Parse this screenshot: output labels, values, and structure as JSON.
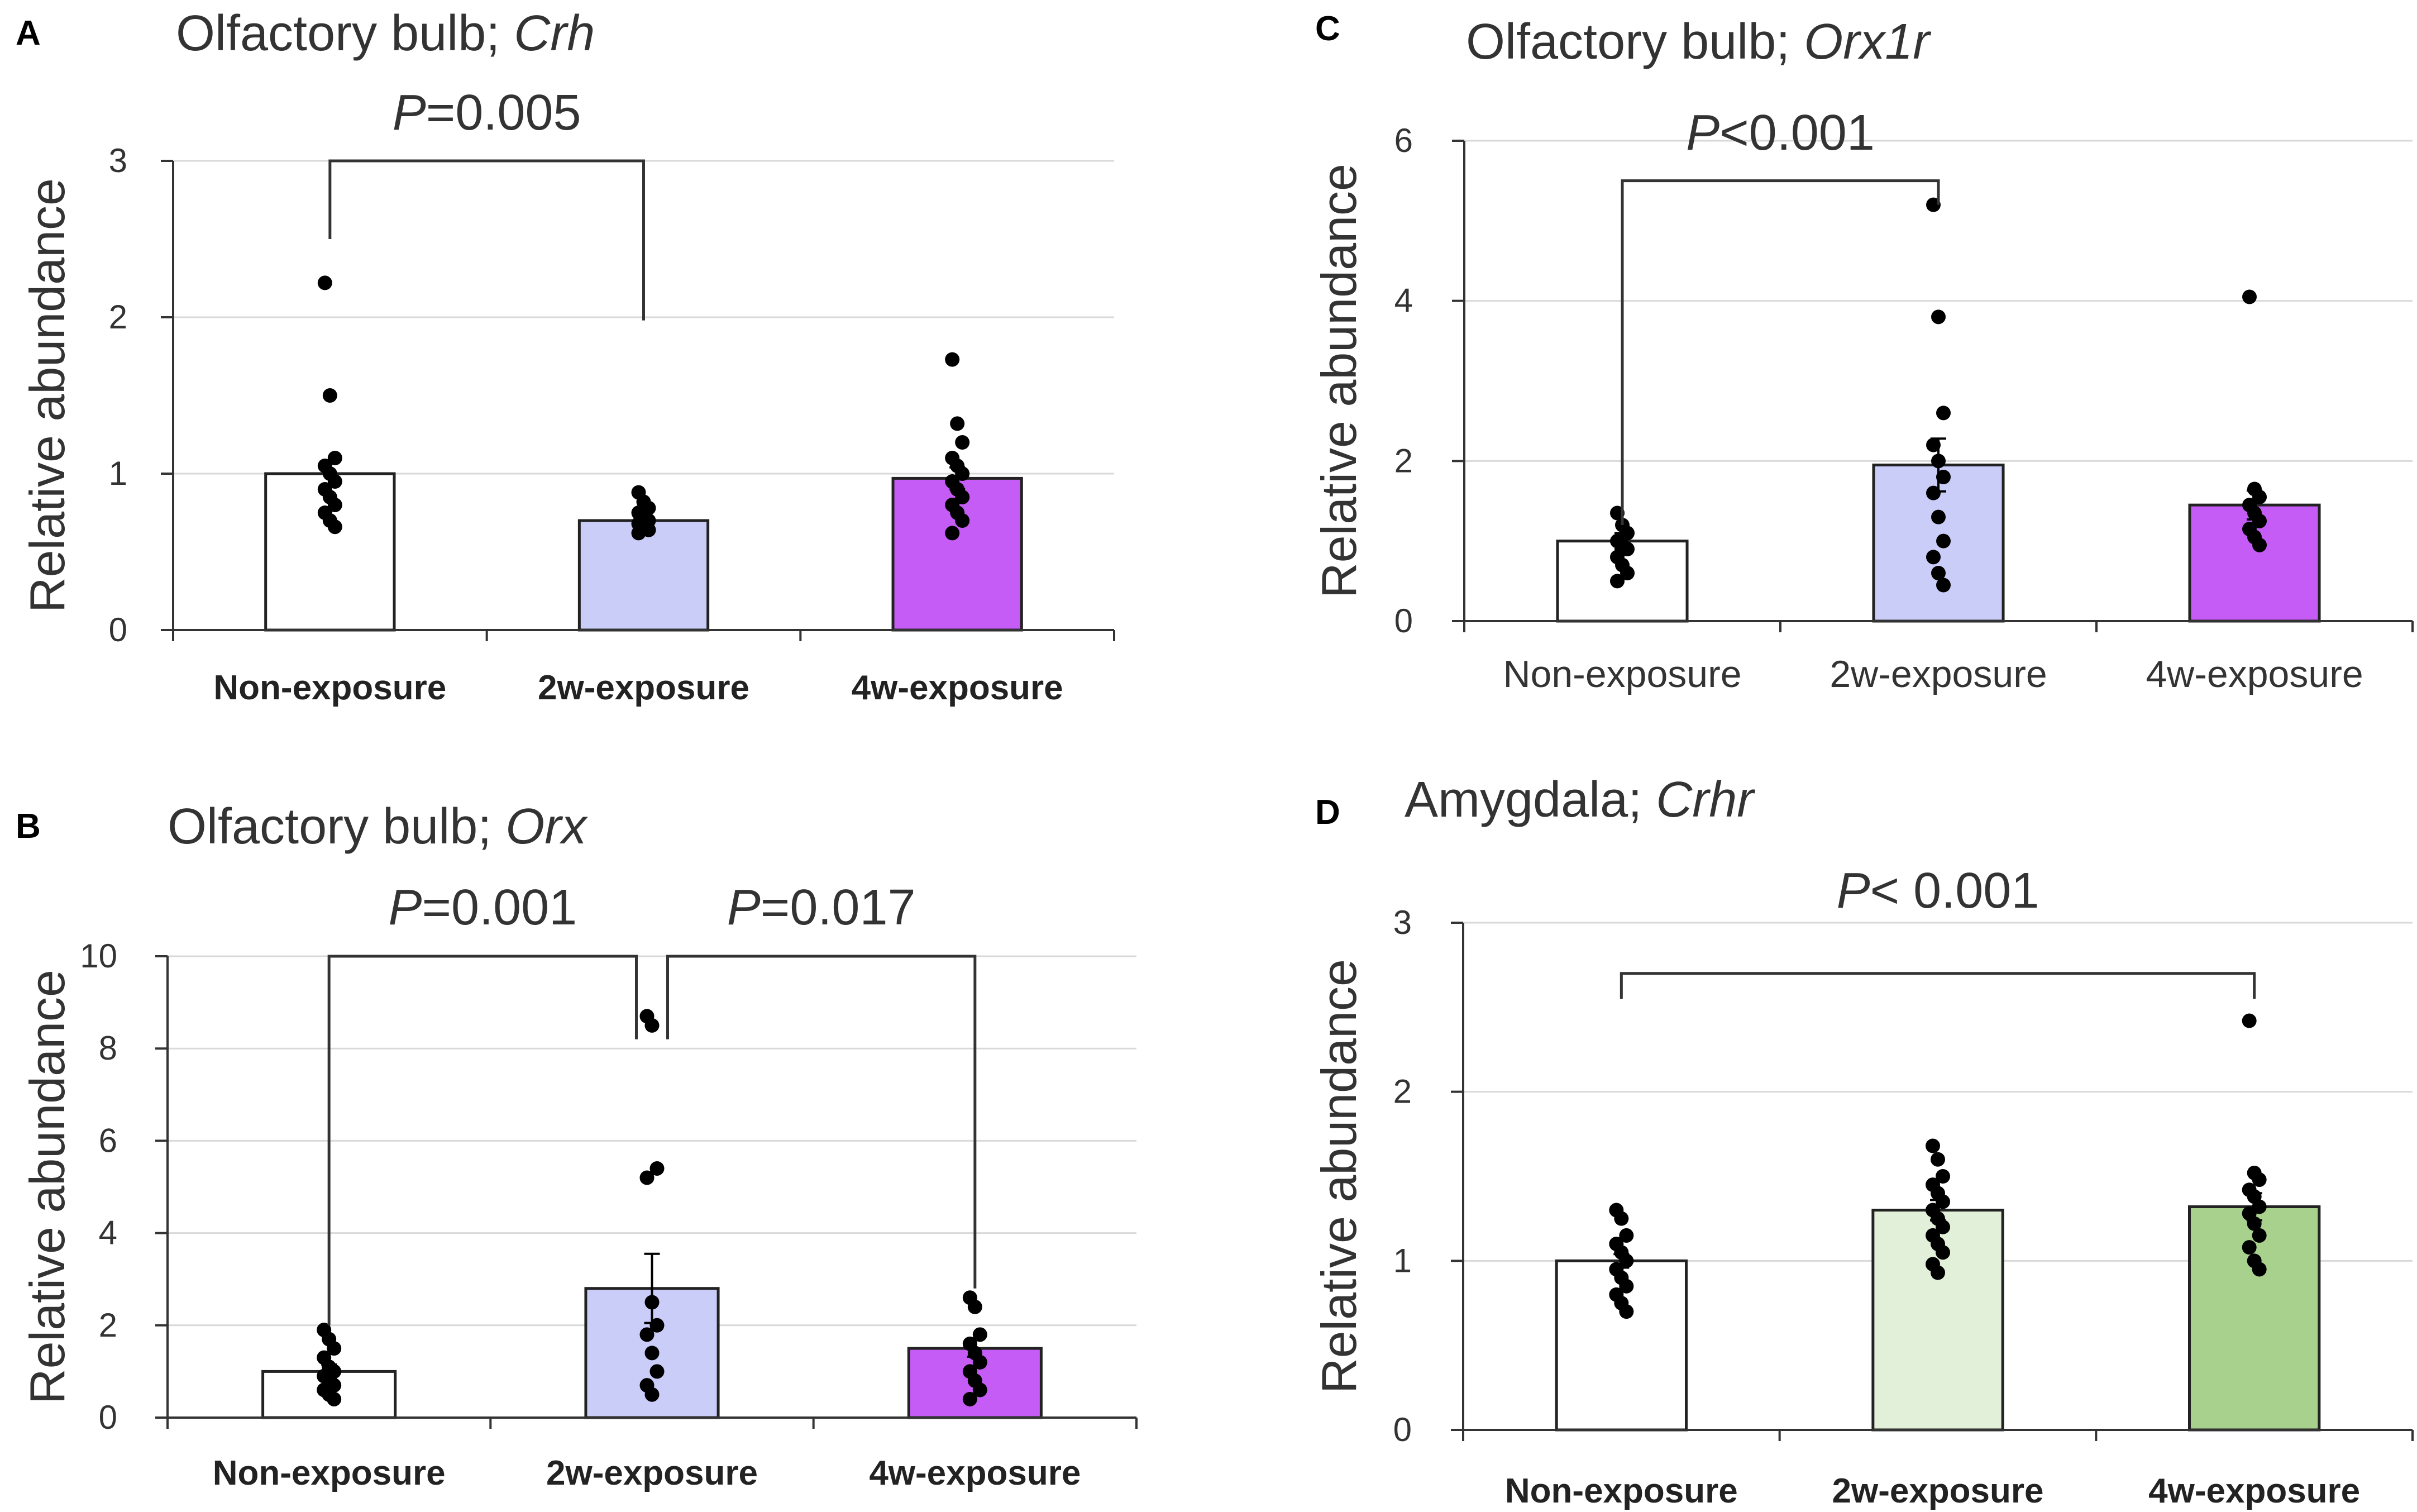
{
  "chart_data": [
    {
      "panel": "A",
      "type": "bar",
      "title_prefix": "Olfactory bulb; ",
      "title_gene": "Crh",
      "ylabel": "Relative abundance",
      "ylim": [
        0,
        3
      ],
      "yticks": [
        0,
        1,
        2,
        3
      ],
      "categories": [
        "Non-exposure",
        "2w-exposure",
        "4w-exposure"
      ],
      "category_style": "bold",
      "values": [
        1.0,
        0.7,
        0.97
      ],
      "errors": [
        0.08,
        0.03,
        0.07
      ],
      "bar_colors": [
        "#ffffff",
        "#c9cdf8",
        "#c55cf6"
      ],
      "points": [
        [
          2.22,
          1.5,
          1.1,
          1.05,
          1.0,
          0.95,
          0.9,
          0.85,
          0.8,
          0.75,
          0.7,
          0.66
        ],
        [
          0.88,
          0.82,
          0.78,
          0.75,
          0.72,
          0.7,
          0.68,
          0.66,
          0.64,
          0.62
        ],
        [
          1.73,
          1.32,
          1.2,
          1.1,
          1.05,
          1.0,
          0.95,
          0.9,
          0.85,
          0.8,
          0.75,
          0.7,
          0.62
        ]
      ],
      "comparisons": [
        {
          "from": 0,
          "to": 1,
          "label_prefix": "P",
          "label_value": "=0.005",
          "y": 3.0,
          "leg_from": 2.5,
          "leg_to": 1.98
        }
      ]
    },
    {
      "panel": "B",
      "type": "bar",
      "title_prefix": "Olfactory bulb; ",
      "title_gene": "Orx",
      "ylabel": "Relative abundance",
      "ylim": [
        0,
        10
      ],
      "yticks": [
        0,
        2,
        4,
        6,
        8,
        10
      ],
      "categories": [
        "Non-exposure",
        "2w-exposure",
        "4w-exposure"
      ],
      "category_style": "bold",
      "values": [
        1.0,
        2.8,
        1.5
      ],
      "errors": [
        0.15,
        0.75,
        0.18
      ],
      "bar_colors": [
        "#ffffff",
        "#c9cdf8",
        "#c55cf6"
      ],
      "points": [
        [
          1.9,
          1.7,
          1.5,
          1.3,
          1.1,
          1.0,
          0.9,
          0.8,
          0.7,
          0.6,
          0.5,
          0.4
        ],
        [
          8.7,
          8.5,
          5.4,
          5.2,
          2.5,
          2.0,
          1.8,
          1.4,
          1.0,
          0.7,
          0.5
        ],
        [
          2.6,
          2.4,
          1.8,
          1.6,
          1.4,
          1.2,
          1.0,
          0.8,
          0.6,
          0.4
        ]
      ],
      "comparisons": [
        {
          "from": 0,
          "to": 1,
          "label_prefix": "P",
          "label_value": "=0.001",
          "y": 10.0,
          "leg_from": 2.0,
          "leg_to": 8.2
        },
        {
          "from": 1,
          "to": 2,
          "label_prefix": "P",
          "label_value": "=0.017",
          "y": 10.0,
          "leg_from": 8.2,
          "leg_to": 2.8
        }
      ]
    },
    {
      "panel": "C",
      "type": "bar",
      "title_prefix": "Olfactory bulb; ",
      "title_gene": "Orx1r",
      "ylabel": "Relative abundance",
      "ylim": [
        0,
        6
      ],
      "yticks": [
        0,
        2,
        4,
        6
      ],
      "categories": [
        "Non-exposure",
        "2w-exposure",
        "4w-exposure"
      ],
      "category_style": "normal",
      "values": [
        1.0,
        1.95,
        1.45
      ],
      "errors": [
        0.1,
        0.33,
        0.18
      ],
      "bar_colors": [
        "#ffffff",
        "#c9cdf8",
        "#c55cf6"
      ],
      "points": [
        [
          1.35,
          1.2,
          1.1,
          1.0,
          0.95,
          0.9,
          0.8,
          0.7,
          0.6,
          0.5
        ],
        [
          5.2,
          3.8,
          2.6,
          2.2,
          2.0,
          1.8,
          1.6,
          1.3,
          1.0,
          0.8,
          0.6,
          0.45
        ],
        [
          4.05,
          1.65,
          1.55,
          1.45,
          1.35,
          1.25,
          1.15,
          1.05,
          0.95
        ]
      ],
      "comparisons": [
        {
          "from": 0,
          "to": 1,
          "label_prefix": "P",
          "label_value": "<0.001",
          "y": 5.5,
          "leg_from": 1.2,
          "leg_to": 5.2
        }
      ]
    },
    {
      "panel": "D",
      "type": "bar",
      "title_prefix": "Amygdala; ",
      "title_gene": "Crhr",
      "ylabel": "Relative abundance",
      "ylim": [
        0,
        3
      ],
      "yticks": [
        0,
        1,
        2,
        3
      ],
      "categories": [
        "Non-exposure",
        "2w-exposure",
        "4w-exposure"
      ],
      "category_style": "bold",
      "values": [
        1.0,
        1.3,
        1.32
      ],
      "errors": [
        0.04,
        0.06,
        0.08
      ],
      "bar_colors": [
        "#ffffff",
        "#e2efd9",
        "#a9d18e"
      ],
      "points": [
        [
          1.3,
          1.25,
          1.15,
          1.1,
          1.05,
          1.0,
          0.95,
          0.9,
          0.85,
          0.8,
          0.75,
          0.7
        ],
        [
          1.68,
          1.6,
          1.5,
          1.45,
          1.4,
          1.35,
          1.3,
          1.25,
          1.2,
          1.15,
          1.1,
          1.05,
          0.98,
          0.93
        ],
        [
          2.42,
          1.52,
          1.48,
          1.42,
          1.38,
          1.32,
          1.28,
          1.22,
          1.15,
          1.08,
          1.0,
          0.95
        ]
      ],
      "comparisons": [
        {
          "from": 0,
          "to": 2,
          "label_prefix": "P",
          "label_value": "< 0.001",
          "y": 2.7,
          "leg_from": 2.55,
          "leg_to": 2.55
        }
      ]
    }
  ]
}
